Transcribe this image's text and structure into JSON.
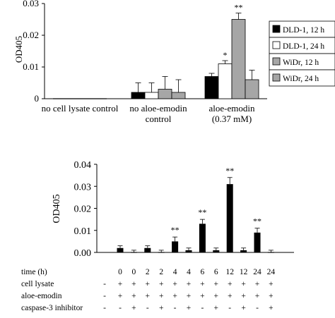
{
  "chart_data": [
    {
      "type": "bar",
      "ylabel": "OD405",
      "ylim": [
        0,
        0.03
      ],
      "yticks": [
        "0",
        "0.01",
        "0.02",
        "0.03"
      ],
      "groups": [
        {
          "label_lines": [
            "no cell lysate control"
          ]
        },
        {
          "label_lines": [
            "no aloe-emodin",
            "control"
          ]
        },
        {
          "label_lines": [
            "aloe-emodin",
            "(0.37 mM)"
          ]
        }
      ],
      "legend_position": "right",
      "series": [
        {
          "name": "DLD-1, 12 h",
          "fill": "#000000",
          "values": [
            0,
            0.002,
            0.007
          ],
          "errors": [
            0,
            0.003,
            0.001
          ],
          "stars": [
            "",
            "",
            ""
          ]
        },
        {
          "name": "DLD-1, 24 h",
          "fill": "#ffffff",
          "values": [
            0,
            0.002,
            0.011
          ],
          "errors": [
            0,
            0.003,
            0.001
          ],
          "stars": [
            "",
            "",
            "*"
          ]
        },
        {
          "name": "WiDr,    12 h",
          "fill": "#a6a6a6",
          "values": [
            0,
            0.003,
            0.025
          ],
          "errors": [
            0,
            0.004,
            0.002
          ],
          "stars": [
            "",
            "",
            "**"
          ]
        },
        {
          "name": "WiDr,    24 h",
          "fill": "#a6a6a6",
          "values": [
            0,
            0.002,
            0.006
          ],
          "errors": [
            0,
            0.004,
            0.003
          ],
          "stars": [
            "",
            "",
            ""
          ]
        }
      ]
    },
    {
      "type": "bar",
      "ylabel": "OD405",
      "ylim": [
        0,
        0.04
      ],
      "yticks": [
        "0.00",
        "0.01",
        "0.02",
        "0.03",
        "0.04"
      ],
      "bar_color": "#000000",
      "values": [
        0.002,
        0,
        0.002,
        0,
        0.005,
        0.001,
        0.013,
        0.001,
        0.031,
        0.001,
        0.009,
        0
      ],
      "errors": [
        0.001,
        0.001,
        0.001,
        0.001,
        0.002,
        0.001,
        0.002,
        0.001,
        0.003,
        0.001,
        0.002,
        0.001
      ],
      "stars": [
        "",
        "",
        "",
        "",
        "**",
        "",
        "**",
        "",
        "**",
        "",
        "**",
        ""
      ],
      "table": {
        "rows": [
          {
            "label": "time (h)",
            "lead": "",
            "cells": [
              "0",
              "0",
              "2",
              "2",
              "4",
              "4",
              "6",
              "6",
              "12",
              "12",
              "24",
              "24"
            ]
          },
          {
            "label": "cell lysate",
            "lead": "-",
            "cells": [
              "+",
              "+",
              "+",
              "+",
              "+",
              "+",
              "+",
              "+",
              "+",
              "+",
              "+",
              "+"
            ]
          },
          {
            "label": "aloe-emodin",
            "lead": "-",
            "cells": [
              "+",
              "+",
              "+",
              "+",
              "+",
              "+",
              "+",
              "+",
              "+",
              "+",
              "+",
              "+"
            ]
          },
          {
            "label": "caspase-3 inhibitor",
            "lead": "-",
            "cells": [
              "-",
              "+",
              "-",
              "+",
              "-",
              "+",
              "-",
              "+",
              "-",
              "+",
              "-",
              "+"
            ]
          }
        ]
      }
    }
  ]
}
